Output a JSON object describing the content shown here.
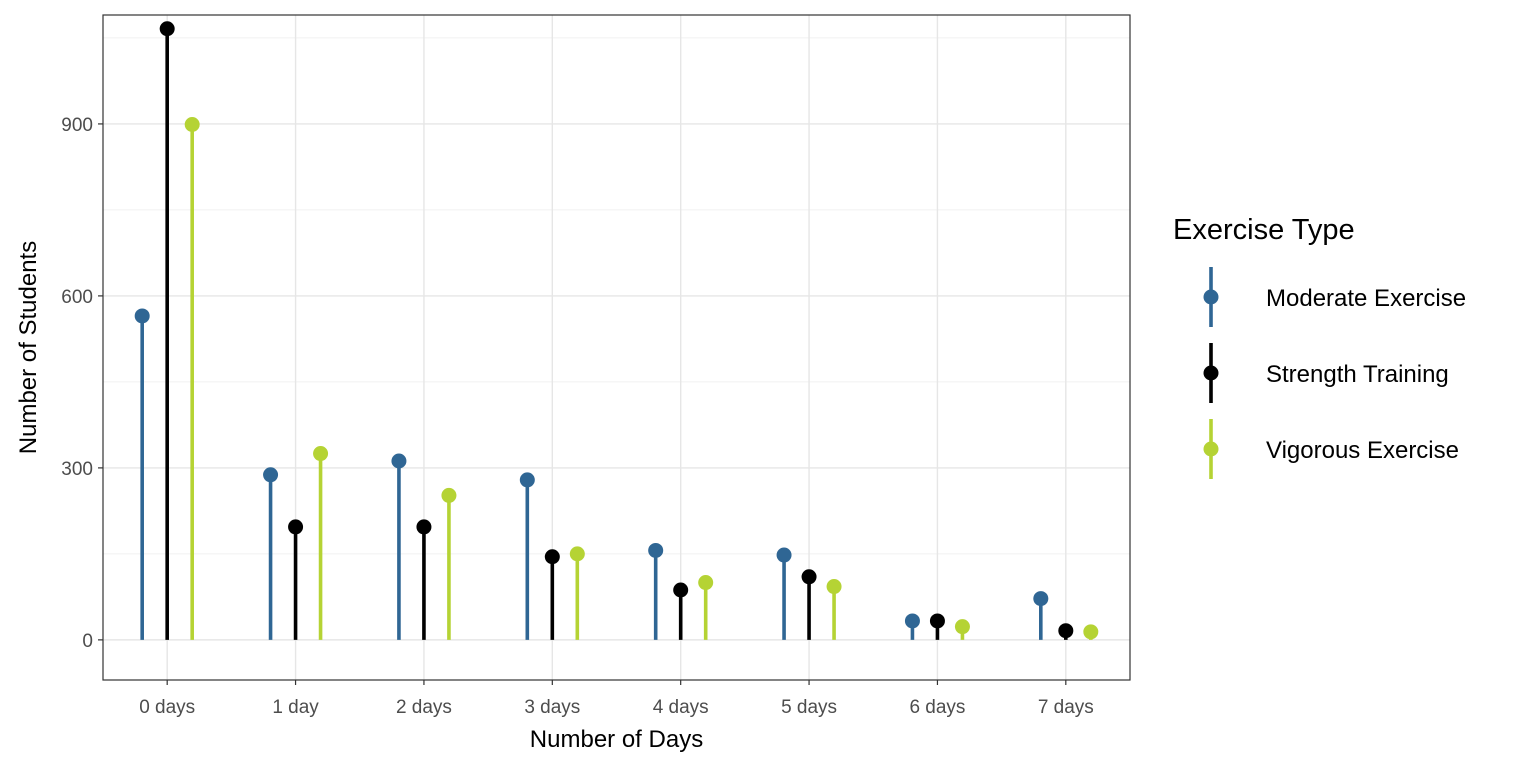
{
  "chart_data": {
    "type": "lollipop",
    "title": "",
    "xlabel": "Number of Days",
    "ylabel": "Number of Students",
    "categories": [
      "0 days",
      "1 day",
      "2 days",
      "3 days",
      "4 days",
      "5 days",
      "6 days",
      "7 days"
    ],
    "ylim": [
      -70,
      1090
    ],
    "yticks": [
      0,
      300,
      600,
      900
    ],
    "grid": true,
    "legend_title": "Exercise Type",
    "legend_position": "right",
    "series": [
      {
        "name": "Moderate Exercise",
        "color": "#2f6694",
        "values": [
          565,
          288,
          312,
          279,
          156,
          148,
          33,
          72
        ]
      },
      {
        "name": "Strength Training",
        "color": "#000000",
        "values": [
          1066,
          197,
          197,
          145,
          87,
          110,
          33,
          16
        ]
      },
      {
        "name": "Vigorous Exercise",
        "color": "#b5d334",
        "values": [
          899,
          325,
          252,
          150,
          100,
          93,
          23,
          14
        ]
      }
    ]
  }
}
